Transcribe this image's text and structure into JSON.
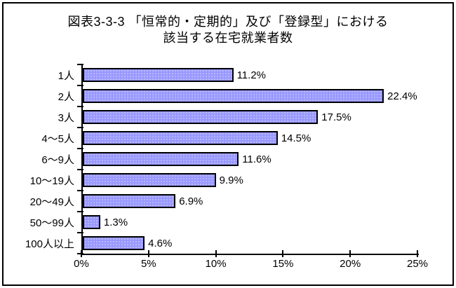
{
  "frame": {
    "background_color": "#FFFFFF",
    "border_color": "#000000"
  },
  "chart_data": {
    "type": "bar",
    "orientation": "horizontal",
    "title": "図表3-3-3 「恒常的・定期的」及び「登録型」における 該当する在宅就業者数",
    "title_line1": "図表3-3-3 「恒常的・定期的」及び「登録型」における",
    "title_line2": "該当する在宅就業者数",
    "categories": [
      "1人",
      "2人",
      "3人",
      "4〜5人",
      "6〜9人",
      "10〜19人",
      "20〜49人",
      "50〜99人",
      "100人以上"
    ],
    "values": [
      11.2,
      22.4,
      17.5,
      14.5,
      11.6,
      9.9,
      6.9,
      1.3,
      4.6
    ],
    "data_labels": [
      "11.2%",
      "22.4%",
      "17.5%",
      "14.5%",
      "11.6%",
      "9.9%",
      "6.9%",
      "1.3%",
      "4.6%"
    ],
    "xlabel": "",
    "ylabel": "",
    "xlim": [
      0,
      25
    ],
    "x_tick_step": 5,
    "x_tick_labels": [
      "0%",
      "5%",
      "10%",
      "15%",
      "20%",
      "25%"
    ],
    "grid": false,
    "legend": false,
    "bar_color": "#9999FF",
    "bar_border_color": "#000000",
    "axis_color": "#000000",
    "text_color": "#000000"
  }
}
